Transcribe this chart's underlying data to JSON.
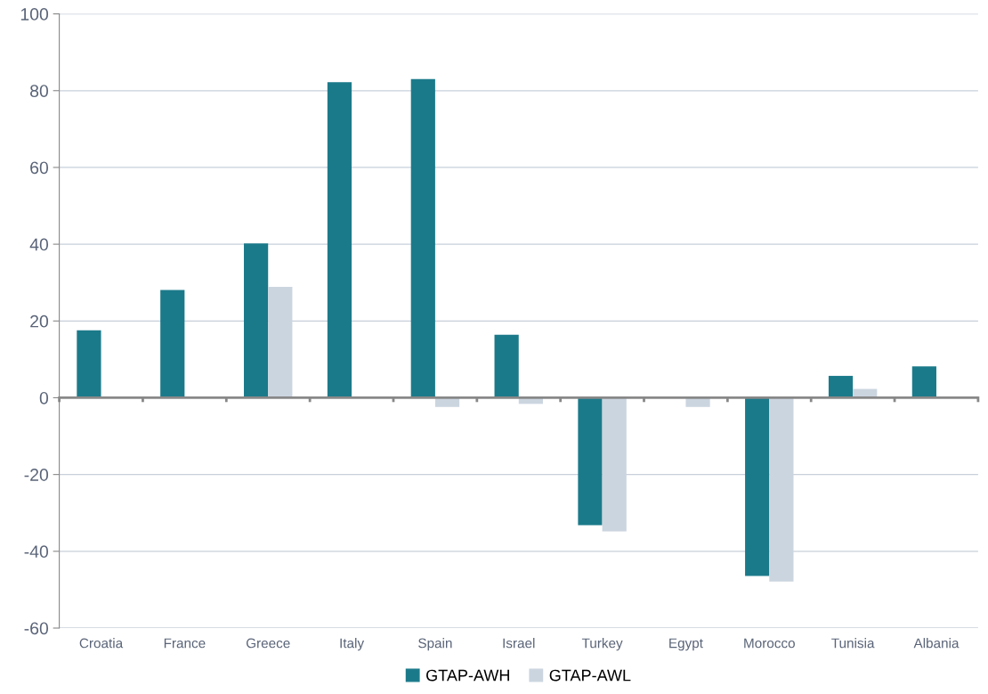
{
  "chart_data": {
    "type": "bar",
    "categories": [
      "Croatia",
      "France",
      "Greece",
      "Italy",
      "Spain",
      "Israel",
      "Turkey",
      "Egypt",
      "Morocco",
      "Tunisia",
      "Albania"
    ],
    "series": [
      {
        "name": "GTAP-AWH",
        "color": "#1b7a8a",
        "values": [
          17.6,
          28.1,
          40.2,
          82.2,
          83.0,
          16.4,
          -33.2,
          -0.1,
          -46.4,
          5.7,
          8.2
        ]
      },
      {
        "name": "GTAP-AWL",
        "color": "#cbd5e0",
        "values": [
          null,
          null,
          28.9,
          null,
          -2.4,
          -1.6,
          -34.8,
          -2.4,
          -47.9,
          2.3,
          null
        ]
      }
    ],
    "ylim": [
      -60,
      100
    ],
    "yticks": [
      -60,
      -40,
      -20,
      0,
      20,
      40,
      60,
      80,
      100
    ],
    "grid": "y",
    "legend": "bottom"
  }
}
